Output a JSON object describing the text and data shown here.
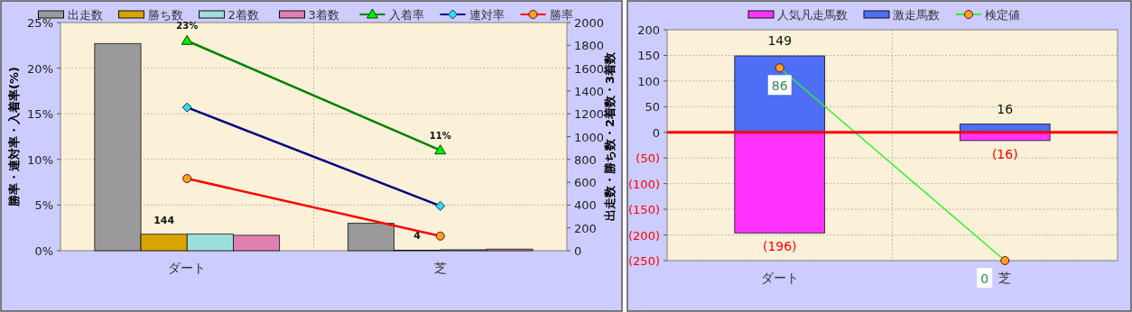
{
  "chart_data": [
    {
      "type": "bar",
      "categories": [
        "ダート",
        "芝"
      ],
      "ylabel": "勝率・連対率・入着率(%)",
      "y2label": "出走数・勝ち数・2着数・3着数",
      "ylim": [
        0,
        25
      ],
      "yticks": [
        {
          "value": 0,
          "label": "0%"
        },
        {
          "value": 5,
          "label": "5%"
        },
        {
          "value": 10,
          "label": "10%"
        },
        {
          "value": 15,
          "label": "15%"
        },
        {
          "value": 20,
          "label": "20%"
        },
        {
          "value": 25,
          "label": "25%"
        }
      ],
      "y2lim": [
        0,
        2000
      ],
      "y2ticks": [
        0,
        200,
        400,
        600,
        800,
        1000,
        1200,
        1400,
        1600,
        1800,
        2000
      ],
      "grid": true,
      "legend": "top",
      "series": [
        {
          "name": "出走数",
          "color": "#9a9a9a",
          "values": [
            1816,
            240
          ],
          "axis": "y2"
        },
        {
          "name": "勝ち数",
          "color": "#d9a400",
          "values": [
            144,
            4
          ],
          "axis": "y2",
          "value_labels": [
            "144",
            "4"
          ]
        },
        {
          "name": "2着数",
          "color": "#9fdede",
          "values": [
            145,
            8
          ],
          "axis": "y2"
        },
        {
          "name": "3着数",
          "color": "#e080b0",
          "values": [
            135,
            14
          ],
          "axis": "y2"
        },
        {
          "name": "入着率",
          "type": "line",
          "color": "#008000",
          "values": [
            23,
            11
          ],
          "marker": "triangle",
          "value_labels": [
            "23%",
            "11%"
          ]
        },
        {
          "name": "連対率",
          "type": "line",
          "color": "#000080",
          "values": [
            15.7,
            4.9
          ],
          "marker": "diamond"
        },
        {
          "name": "勝率",
          "type": "line",
          "color": "#ff0000",
          "values": [
            7.9,
            1.6
          ],
          "marker": "circle"
        }
      ]
    },
    {
      "type": "bar",
      "stacked": true,
      "categories": [
        "ダート",
        "芝"
      ],
      "ylim": [
        -250,
        200
      ],
      "yticks": [
        200,
        150,
        100,
        50,
        0,
        {
          "value": -50,
          "label": "(50)"
        },
        {
          "value": -100,
          "label": "(100)"
        },
        {
          "value": -150,
          "label": "(150)"
        },
        {
          "value": -200,
          "label": "(200)"
        },
        {
          "value": -250,
          "label": "(250)"
        }
      ],
      "y2lim": [
        0,
        103
      ],
      "grid": true,
      "legend": "top",
      "ref_lines": [
        {
          "axis": "y",
          "value": 0,
          "color": "#ff0000"
        }
      ],
      "series": [
        {
          "name": "人気凡走馬数",
          "color": "#ff33ff",
          "values": [
            -196,
            -16
          ],
          "value_labels": [
            "(196)",
            "(16)"
          ]
        },
        {
          "name": "激走馬数",
          "color": "#4d6ef5",
          "values": [
            149,
            16
          ],
          "value_labels": [
            "149",
            "16"
          ]
        },
        {
          "name": "検定値",
          "type": "line",
          "axis": "y2",
          "color": "#33ee33",
          "values": [
            86,
            0
          ],
          "marker": "circle",
          "value_labels": [
            "86",
            "0"
          ]
        }
      ]
    }
  ]
}
